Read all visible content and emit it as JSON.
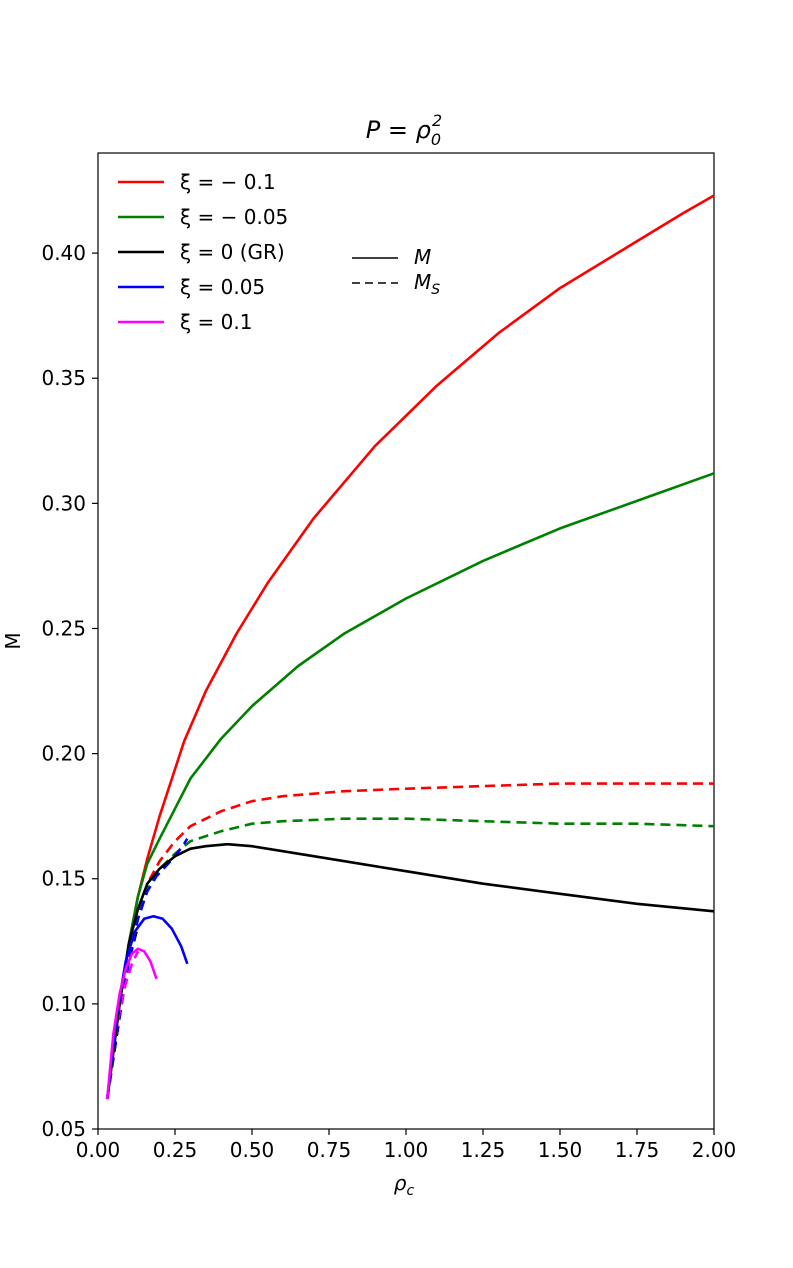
{
  "chart_data": {
    "type": "line",
    "title_main": "P = ρ",
    "title_sub": "0",
    "title_sup": "2",
    "xlabel_main": "ρ",
    "xlabel_sub": "c",
    "ylabel": "M",
    "xlim": [
      0.0,
      2.0
    ],
    "ylim": [
      0.05,
      0.44
    ],
    "xticks": [
      "0.00",
      "0.25",
      "0.50",
      "0.75",
      "1.00",
      "1.25",
      "1.50",
      "1.75",
      "2.00"
    ],
    "yticks": [
      "0.05",
      "0.10",
      "0.15",
      "0.20",
      "0.25",
      "0.30",
      "0.35",
      "0.40"
    ],
    "grid": false,
    "legend_position": "top-left",
    "series": [
      {
        "name": "ξ = − 0.1",
        "color": "#ff0000",
        "M": {
          "x": [
            0.03,
            0.07,
            0.1,
            0.13,
            0.16,
            0.2,
            0.28,
            0.35,
            0.45,
            0.55,
            0.7,
            0.9,
            1.1,
            1.3,
            1.5,
            1.7,
            1.9,
            2.0
          ],
          "y": [
            0.062,
            0.1,
            0.124,
            0.143,
            0.158,
            0.175,
            0.205,
            0.225,
            0.248,
            0.268,
            0.294,
            0.323,
            0.347,
            0.368,
            0.386,
            0.401,
            0.416,
            0.423
          ]
        },
        "MS": {
          "x": [
            0.03,
            0.07,
            0.1,
            0.13,
            0.16,
            0.2,
            0.25,
            0.3,
            0.4,
            0.5,
            0.6,
            0.8,
            1.0,
            1.25,
            1.5,
            1.75,
            2.0
          ],
          "y": [
            0.062,
            0.095,
            0.118,
            0.136,
            0.148,
            0.157,
            0.165,
            0.171,
            0.177,
            0.181,
            0.183,
            0.185,
            0.186,
            0.187,
            0.188,
            0.188,
            0.188
          ]
        }
      },
      {
        "name": "ξ = − 0.05",
        "color": "#008000",
        "M": {
          "x": [
            0.03,
            0.07,
            0.1,
            0.13,
            0.16,
            0.2,
            0.25,
            0.3,
            0.4,
            0.5,
            0.65,
            0.8,
            1.0,
            1.25,
            1.5,
            1.75,
            2.0
          ],
          "y": [
            0.062,
            0.1,
            0.124,
            0.143,
            0.156,
            0.166,
            0.178,
            0.19,
            0.206,
            0.219,
            0.235,
            0.248,
            0.262,
            0.277,
            0.29,
            0.301,
            0.312
          ]
        },
        "MS": {
          "x": [
            0.03,
            0.07,
            0.1,
            0.13,
            0.16,
            0.2,
            0.25,
            0.3,
            0.4,
            0.5,
            0.6,
            0.8,
            1.0,
            1.25,
            1.5,
            1.75,
            2.0
          ],
          "y": [
            0.062,
            0.095,
            0.118,
            0.135,
            0.146,
            0.154,
            0.16,
            0.165,
            0.169,
            0.172,
            0.173,
            0.174,
            0.174,
            0.173,
            0.172,
            0.172,
            0.171
          ]
        }
      },
      {
        "name": "ξ = 0 (GR)",
        "color": "#000000",
        "M": {
          "x": [
            0.03,
            0.07,
            0.1,
            0.13,
            0.16,
            0.2,
            0.25,
            0.3,
            0.35,
            0.42,
            0.5,
            0.6,
            0.7,
            0.8,
            1.0,
            1.25,
            1.5,
            1.75,
            2.0
          ],
          "y": [
            0.062,
            0.1,
            0.124,
            0.138,
            0.148,
            0.154,
            0.159,
            0.162,
            0.163,
            0.1638,
            0.163,
            0.161,
            0.159,
            0.157,
            0.153,
            0.148,
            0.144,
            0.14,
            0.137
          ]
        },
        "MS": {
          "x": [
            0.03,
            0.07,
            0.1,
            0.13
          ],
          "y": [
            0.062,
            0.095,
            0.117,
            0.131
          ]
        }
      },
      {
        "name": "ξ = 0.05",
        "color": "#0000ff",
        "M": {
          "x": [
            0.03,
            0.06,
            0.09,
            0.12,
            0.15,
            0.18,
            0.21,
            0.24,
            0.27,
            0.29
          ],
          "y": [
            0.062,
            0.095,
            0.117,
            0.129,
            0.134,
            0.135,
            0.134,
            0.13,
            0.123,
            0.116
          ]
        },
        "MS": {
          "x": [
            0.03,
            0.07,
            0.1,
            0.13,
            0.16,
            0.19,
            0.22,
            0.25,
            0.28,
            0.29
          ],
          "y": [
            0.062,
            0.095,
            0.117,
            0.134,
            0.145,
            0.151,
            0.155,
            0.159,
            0.164,
            0.166
          ]
        }
      },
      {
        "name": "ξ = 0.1",
        "color": "#ff00ff",
        "M": {
          "x": [
            0.03,
            0.05,
            0.07,
            0.09,
            0.11,
            0.13,
            0.15,
            0.17,
            0.19
          ],
          "y": [
            0.062,
            0.088,
            0.104,
            0.114,
            0.12,
            0.122,
            0.121,
            0.117,
            0.11
          ]
        },
        "MS": {
          "x": [
            0.03,
            0.05,
            0.07,
            0.09,
            0.11,
            0.13
          ],
          "y": [
            0.062,
            0.082,
            0.097,
            0.108,
            0.116,
            0.121
          ]
        }
      }
    ],
    "style_legend": [
      {
        "label": "M",
        "dash": "solid"
      },
      {
        "label_main": "M",
        "label_sub": "S",
        "dash": "dashed"
      }
    ]
  }
}
